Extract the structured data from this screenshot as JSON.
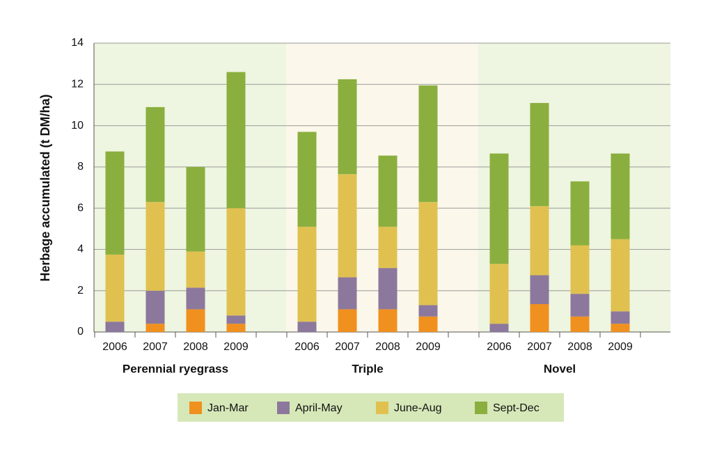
{
  "chart_data": {
    "type": "stacked-bar",
    "y_label": "Herbage accumulated (t DM/ha)",
    "groups": [
      "Perennial ryegrass",
      "Triple",
      "Novel"
    ],
    "categories": [
      "2006",
      "2007",
      "2008",
      "2009",
      "2006",
      "2007",
      "2008",
      "2009",
      "2006",
      "2007",
      "2008",
      "2009"
    ],
    "series": [
      {
        "name": "Jan-Mar",
        "color": "#f0901e",
        "values": [
          0,
          0.4,
          1.1,
          0.4,
          0,
          1.1,
          1.1,
          0.75,
          0,
          1.35,
          0.75,
          0.4
        ]
      },
      {
        "name": "April-May",
        "color": "#8c789c",
        "values": [
          0.5,
          1.6,
          1.05,
          0.4,
          0.5,
          1.55,
          2.0,
          0.55,
          0.4,
          1.4,
          1.1,
          0.6
        ]
      },
      {
        "name": "June-Aug",
        "color": "#e0c150",
        "values": [
          3.25,
          4.3,
          1.75,
          5.2,
          4.6,
          5.0,
          2.0,
          5.0,
          2.9,
          3.35,
          2.35,
          3.5
        ]
      },
      {
        "name": "Sept-Dec",
        "color": "#8aaf3e",
        "values": [
          5.0,
          4.6,
          4.1,
          6.6,
          4.6,
          4.6,
          3.45,
          5.65,
          5.35,
          5.0,
          3.1,
          4.15
        ]
      }
    ],
    "ylim": [
      0,
      14
    ],
    "yticks": [
      0,
      2,
      4,
      6,
      8,
      10,
      12,
      14
    ],
    "grid": true
  }
}
